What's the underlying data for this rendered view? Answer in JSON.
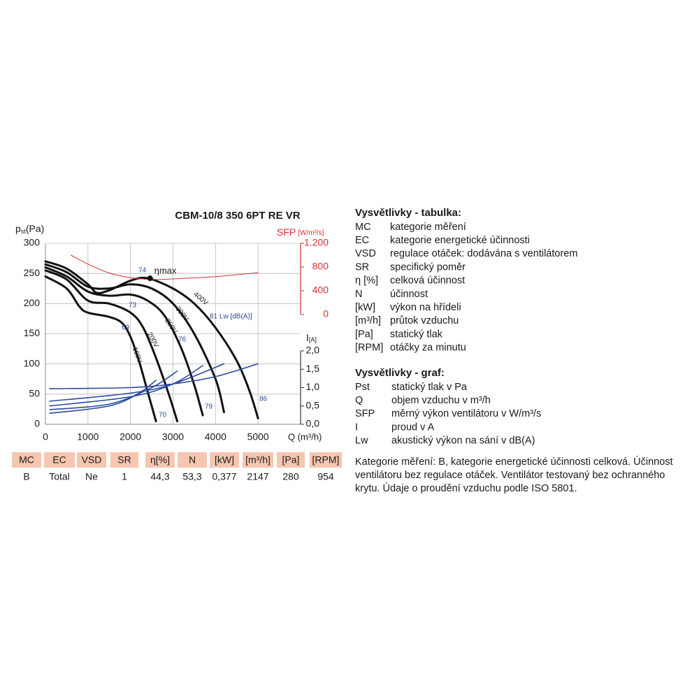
{
  "chart_data": {
    "type": "line",
    "title": "CBM-10/8 350 6PT RE VR",
    "y_label": {
      "main": "p",
      "sub": "st",
      "unit": "(Pa)"
    },
    "x_label": "Q (m³/h)",
    "y2_label": {
      "main": "SFP",
      "unit": "[W/m³/s]"
    },
    "y3_label": {
      "main": "I",
      "unit": "[A]"
    },
    "xlim": [
      0,
      6000
    ],
    "xticks": [
      0,
      1000,
      2000,
      3000,
      4000,
      5000
    ],
    "ylim": [
      0,
      300
    ],
    "yticks": [
      0,
      50,
      100,
      150,
      200,
      250,
      300
    ],
    "y2lim": [
      0,
      1200
    ],
    "y2ticks": [
      0,
      400,
      800,
      {
        "value": 1200,
        "label": "1.200"
      }
    ],
    "y3lim": [
      0,
      2
    ],
    "y3ticks": [
      {
        "value": 0,
        "label": "0,0"
      },
      {
        "value": 0.5,
        "label": "0,5"
      },
      {
        "value": 1,
        "label": "1,0"
      },
      {
        "value": 1.5,
        "label": "1,5"
      },
      {
        "value": 2,
        "label": "2,0"
      }
    ],
    "grid": true,
    "series": [
      {
        "name": "160V",
        "color": "#111111",
        "axis": "y",
        "x": [
          0,
          500,
          800,
          1000,
          1500,
          1800,
          2000,
          2200,
          2400,
          2600
        ],
        "values": [
          245,
          225,
          195,
          185,
          178,
          168,
          145,
          105,
          55,
          5
        ]
      },
      {
        "name": "200V",
        "color": "#111111",
        "axis": "y",
        "x": [
          0,
          500,
          1000,
          1500,
          2000,
          2300,
          2600,
          2900,
          3100
        ],
        "values": [
          255,
          240,
          205,
          200,
          185,
          160,
          110,
          50,
          5
        ]
      },
      {
        "name": "250V",
        "color": "#111111",
        "axis": "y",
        "x": [
          0,
          500,
          1000,
          1500,
          2000,
          2400,
          2800,
          3200,
          3500,
          3700
        ],
        "values": [
          260,
          245,
          220,
          213,
          215,
          205,
          180,
          125,
          65,
          15
        ]
      },
      {
        "name": "300V",
        "color": "#111111",
        "axis": "y",
        "x": [
          0,
          500,
          1000,
          1500,
          2000,
          2500,
          3000,
          3500,
          4000,
          4200
        ],
        "values": [
          265,
          252,
          228,
          225,
          232,
          225,
          200,
          150,
          75,
          20
        ]
      },
      {
        "name": "400V",
        "color": "#111111",
        "axis": "y",
        "x": [
          0,
          500,
          1000,
          1200,
          1500,
          2000,
          2400,
          3000,
          3500,
          4000,
          4500,
          4800,
          5000
        ],
        "values": [
          270,
          258,
          232,
          218,
          222,
          238,
          242,
          225,
          200,
          160,
          105,
          55,
          10
        ]
      },
      {
        "color": "#2b4a9a",
        "axis": "y3",
        "x": [
          100,
          2000,
          3000,
          4000,
          5000
        ],
        "values": [
          0.97,
          1.0,
          1.1,
          1.3,
          1.65
        ]
      },
      {
        "color": "#2b4a9a",
        "axis": "y3",
        "x": [
          100,
          2000,
          3000,
          4200
        ],
        "values": [
          0.63,
          0.85,
          1.1,
          1.65
        ]
      },
      {
        "color": "#2b4a9a",
        "axis": "y3",
        "x": [
          100,
          2000,
          3000,
          3700
        ],
        "values": [
          0.5,
          0.75,
          1.1,
          1.6
        ]
      },
      {
        "color": "#2b4a9a",
        "axis": "y3",
        "x": [
          100,
          1500,
          2500,
          3100
        ],
        "values": [
          0.4,
          0.55,
          1.0,
          1.45
        ]
      },
      {
        "color": "#2b4a9a",
        "axis": "y3",
        "x": [
          100,
          1500,
          2200,
          2600
        ],
        "values": [
          0.3,
          0.5,
          0.85,
          1.2
        ]
      },
      {
        "color": "#d33333",
        "axis": "y2",
        "x": [
          600,
          1000,
          1500,
          2000,
          2500,
          3000,
          4000,
          5000
        ],
        "values": [
          1000,
          850,
          700,
          620,
          590,
          600,
          640,
          705
        ]
      }
    ],
    "eta_max": {
      "label": "ηmax",
      "x": 2460,
      "y": 242
    },
    "lw_labels": [
      "74",
      "73",
      "69",
      "76",
      "70",
      "79",
      "86",
      "81 Lw [dB(A)]"
    ]
  },
  "table": {
    "headers": [
      "MC",
      "EC",
      "VSD",
      "SR",
      "η[%]",
      "N",
      "[kW]",
      "[m³/h]",
      "[Pa]",
      "[RPM]"
    ],
    "rows": [
      [
        "B",
        "Total",
        "Ne",
        "1",
        "44,3",
        "53,3",
        "0,377",
        "2147",
        "280",
        "954"
      ]
    ]
  },
  "legend_table": {
    "title": "Vysvětlivky - tabulka:",
    "items": [
      [
        "MC",
        "kategorie měření"
      ],
      [
        "EC",
        "kategorie energetické účinnosti"
      ],
      [
        "VSD",
        "regulace otáček: dodávána s ventilátorem"
      ],
      [
        "SR",
        "specifický poměr"
      ],
      [
        "η [%]",
        "celková účinnost"
      ],
      [
        "N",
        "účinnost"
      ],
      [
        "[kW]",
        "výkon na hřídeli"
      ],
      [
        "[m³/h]",
        "průtok vzduchu"
      ],
      [
        "[Pa]",
        "statický tlak"
      ],
      [
        "[RPM]",
        "otáčky za minutu"
      ]
    ]
  },
  "legend_graph": {
    "title": "Vysvětlivky - graf:",
    "items": [
      [
        "Pst",
        "statický tlak v Pa"
      ],
      [
        "Q",
        "objem vzduchu v m³/h"
      ],
      [
        "SFP",
        "měrný výkon ventilátoru v W/m³/s"
      ],
      [
        "I",
        "proud v A"
      ],
      [
        "Lw",
        "akustický výkon na sání v dB(A)"
      ]
    ]
  },
  "note": "Kategorie měření: B, kategorie energetické účinnosti celková. Účinnost ventilátoru bez regulace otáček. Ventilátor testovaný bez ochranného krytu. Údaje o proudění vzduchu podle ISO 5801."
}
